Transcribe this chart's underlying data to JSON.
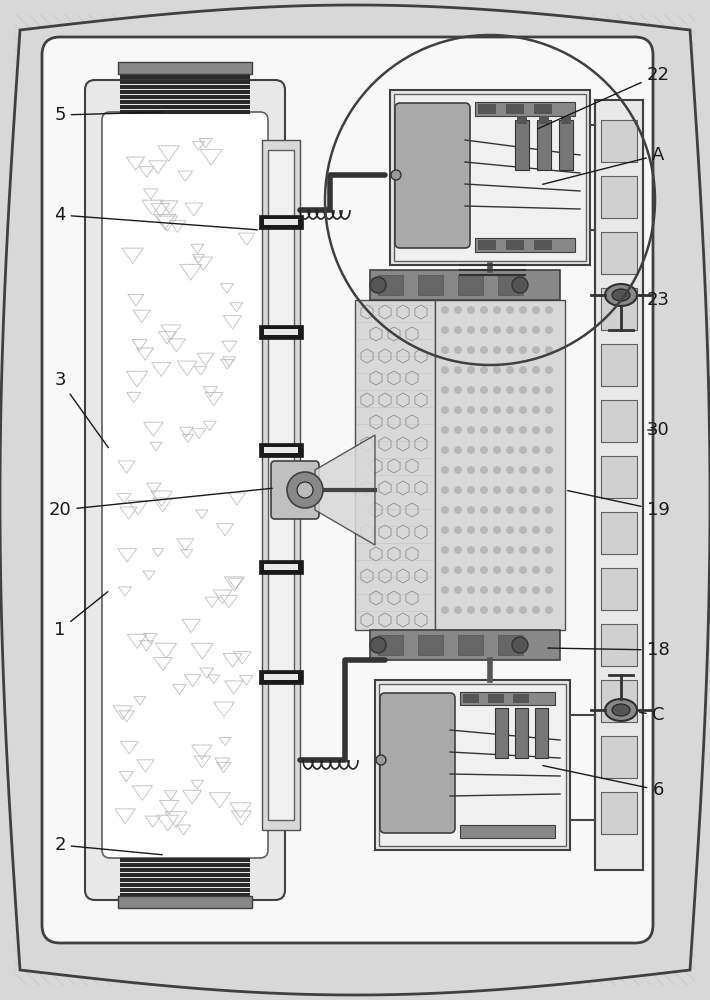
{
  "bg_outer": "#d8d8d8",
  "bg_inner": "#f0f0f0",
  "white": "#ffffff",
  "light_gray": "#e0e0e0",
  "med_gray": "#b0b0b0",
  "dark_gray": "#404040",
  "black": "#1a1a1a",
  "panel_gray": "#c8c8c8",
  "coil_black": "#222222",
  "label_fontsize": 13,
  "label_color": "#1a1a1a"
}
